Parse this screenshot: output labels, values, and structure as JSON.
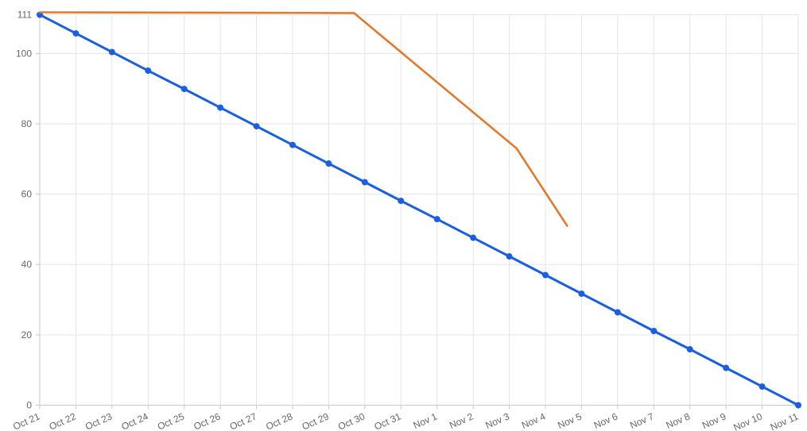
{
  "chart_data": {
    "type": "line",
    "title": "",
    "xlabel": "",
    "ylabel": "",
    "categories": [
      "Oct 21",
      "Oct 22",
      "Oct 23",
      "Oct 24",
      "Oct 25",
      "Oct 26",
      "Oct 27",
      "Oct 28",
      "Oct 29",
      "Oct 30",
      "Oct 31",
      "Nov 1",
      "Nov 2",
      "Nov 3",
      "Nov 4",
      "Nov 5",
      "Nov 6",
      "Nov 7",
      "Nov 8",
      "Nov 9",
      "Nov 10",
      "Nov 11"
    ],
    "yticks": [
      0,
      20,
      40,
      60,
      80,
      100,
      111
    ],
    "ylim": [
      0,
      111
    ],
    "grid": true,
    "series": [
      {
        "color": "#1a5fe0",
        "markers": true,
        "points": [
          {
            "x": "Oct 21",
            "y": 111
          },
          {
            "x": "Oct 22",
            "y": 105.7
          },
          {
            "x": "Oct 23",
            "y": 100.4
          },
          {
            "x": "Oct 24",
            "y": 95.1
          },
          {
            "x": "Oct 25",
            "y": 89.9
          },
          {
            "x": "Oct 26",
            "y": 84.6
          },
          {
            "x": "Oct 27",
            "y": 79.3
          },
          {
            "x": "Oct 28",
            "y": 74.0
          },
          {
            "x": "Oct 29",
            "y": 68.7
          },
          {
            "x": "Oct 30",
            "y": 63.4
          },
          {
            "x": "Oct 31",
            "y": 58.1
          },
          {
            "x": "Nov 1",
            "y": 52.9
          },
          {
            "x": "Nov 2",
            "y": 47.6
          },
          {
            "x": "Nov 3",
            "y": 42.3
          },
          {
            "x": "Nov 4",
            "y": 37.0
          },
          {
            "x": "Nov 5",
            "y": 31.7
          },
          {
            "x": "Nov 6",
            "y": 26.4
          },
          {
            "x": "Nov 7",
            "y": 21.1
          },
          {
            "x": "Nov 8",
            "y": 15.9
          },
          {
            "x": "Nov 9",
            "y": 10.6
          },
          {
            "x": "Nov 10",
            "y": 5.3
          },
          {
            "x": "Nov 11",
            "y": 0
          }
        ]
      },
      {
        "color": "#e07b2d",
        "markers": false,
        "points": [
          {
            "x": "Oct 21",
            "y": 111.7
          },
          {
            "x": "Oct 29.7",
            "y": 111.5
          },
          {
            "x": "Nov 3.2",
            "y": 73
          },
          {
            "x": "Nov 4.6",
            "y": 51
          }
        ]
      }
    ]
  }
}
